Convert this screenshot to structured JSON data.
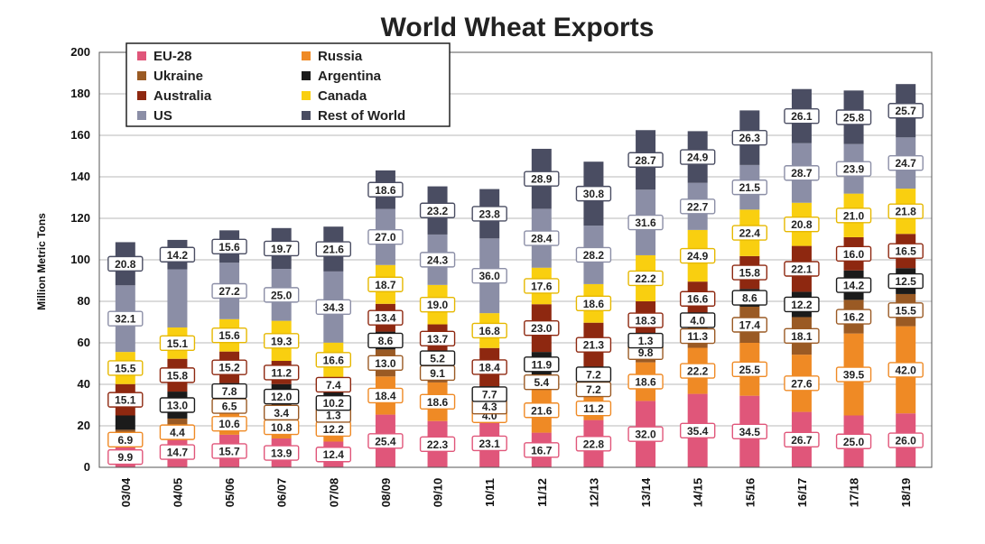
{
  "chart_data": {
    "type": "bar",
    "stacked": true,
    "title": "World Wheat Exports",
    "ylabel": "Million Metric Tons",
    "ylim": [
      0,
      200
    ],
    "yticks": [
      0,
      20,
      40,
      60,
      80,
      100,
      120,
      140,
      160,
      180,
      200
    ],
    "grid": true,
    "legend_position": "top-left",
    "categories": [
      "03/04",
      "04/05",
      "05/06",
      "06/07",
      "07/08",
      "08/09",
      "09/10",
      "10/11",
      "11/12",
      "12/13",
      "13/14",
      "14/15",
      "15/16",
      "16/17",
      "17/18",
      "18/19"
    ],
    "series": [
      {
        "name": "EU-28",
        "color": "#e0567a",
        "values": [
          9.9,
          14.7,
          15.7,
          13.9,
          12.4,
          25.4,
          22.3,
          23.1,
          16.7,
          22.8,
          32.0,
          35.4,
          34.5,
          26.7,
          25.0,
          26.0
        ]
      },
      {
        "name": "Russia",
        "color": "#ef8a25",
        "values": [
          6.9,
          4.4,
          10.6,
          10.8,
          12.2,
          18.4,
          18.6,
          4.0,
          21.6,
          11.2,
          18.6,
          22.2,
          25.5,
          27.6,
          39.5,
          42.0
        ]
      },
      {
        "name": "Ukraine",
        "color": "#9a5a24",
        "values": [
          1.3,
          4.4,
          6.5,
          3.4,
          1.3,
          13.0,
          9.1,
          4.3,
          5.4,
          7.2,
          9.8,
          11.3,
          17.4,
          18.1,
          16.2,
          15.5
        ]
      },
      {
        "name": "Argentina",
        "color": "#1b1b1b",
        "values": [
          6.9,
          13.0,
          7.8,
          12.0,
          10.2,
          8.6,
          5.2,
          7.7,
          11.9,
          7.2,
          1.3,
          4.0,
          8.6,
          12.2,
          14.2,
          12.5
        ]
      },
      {
        "name": "Australia",
        "color": "#8e2810",
        "values": [
          15.1,
          15.8,
          15.2,
          11.2,
          7.4,
          13.4,
          13.7,
          18.4,
          23.0,
          21.3,
          18.3,
          16.6,
          15.8,
          22.1,
          16.0,
          16.5
        ]
      },
      {
        "name": "Canada",
        "color": "#f9cf10",
        "values": [
          15.5,
          15.1,
          15.6,
          19.3,
          16.6,
          18.7,
          19.0,
          16.8,
          17.6,
          18.6,
          22.2,
          24.9,
          22.4,
          20.8,
          21.0,
          21.8
        ]
      },
      {
        "name": "US",
        "color": "#8b8ea6",
        "values": [
          32.1,
          28.0,
          27.2,
          25.0,
          34.3,
          27.0,
          24.3,
          36.0,
          28.4,
          28.2,
          31.6,
          22.7,
          21.5,
          28.7,
          23.9,
          24.7
        ]
      },
      {
        "name": "Rest of World",
        "color": "#4a4d62",
        "values": [
          20.8,
          14.2,
          15.6,
          19.7,
          21.6,
          18.6,
          23.2,
          23.8,
          28.9,
          30.8,
          28.7,
          24.9,
          26.3,
          26.1,
          25.8,
          25.7
        ]
      }
    ],
    "data_labels": [
      {
        "category": "03/04",
        "labels": [
          "9.9",
          "6.9",
          "",
          "",
          "15.1",
          "15.5",
          "32.1",
          "20.8"
        ]
      },
      {
        "category": "04/05",
        "labels": [
          "14.7",
          "4.4",
          "",
          "13.0",
          "15.8",
          "15.1",
          "",
          "14.2"
        ]
      },
      {
        "category": "05/06",
        "labels": [
          "15.7",
          "10.6",
          "6.5",
          "7.8",
          "15.2",
          "15.6",
          "27.2",
          "15.6"
        ]
      },
      {
        "category": "06/07",
        "labels": [
          "13.9",
          "10.8",
          "3.4",
          "12.0",
          "11.2",
          "19.3",
          "25.0",
          "19.7"
        ]
      },
      {
        "category": "07/08",
        "labels": [
          "12.4",
          "12.2",
          "1.3",
          "10.2",
          "7.4",
          "16.6",
          "34.3",
          "21.6"
        ]
      },
      {
        "category": "08/09",
        "labels": [
          "25.4",
          "18.4",
          "13.0",
          "8.6",
          "13.4",
          "18.7",
          "27.0",
          "18.6"
        ]
      },
      {
        "category": "09/10",
        "labels": [
          "22.3",
          "18.6",
          "9.1",
          "5.2",
          "13.7",
          "19.0",
          "24.3",
          "23.2"
        ]
      },
      {
        "category": "10/11",
        "labels": [
          "23.1",
          "4.0",
          "4.3",
          "7.7",
          "18.4",
          "16.8",
          "36.0",
          "23.8"
        ]
      },
      {
        "category": "11/12",
        "labels": [
          "16.7",
          "21.6",
          "5.4",
          "11.9",
          "23.0",
          "17.6",
          "28.4",
          "28.9"
        ]
      },
      {
        "category": "12/13",
        "labels": [
          "22.8",
          "11.2",
          "7.2",
          "7.2",
          "21.3",
          "18.6",
          "28.2",
          "30.8"
        ]
      },
      {
        "category": "13/14",
        "labels": [
          "32.0",
          "18.6",
          "9.8",
          "1.3",
          "18.3",
          "22.2",
          "31.6",
          "28.7"
        ]
      },
      {
        "category": "14/15",
        "labels": [
          "35.4",
          "22.2",
          "11.3",
          "4.0",
          "16.6",
          "24.9",
          "22.7",
          "24.9"
        ]
      },
      {
        "category": "15/16",
        "labels": [
          "34.5",
          "25.5",
          "17.4",
          "8.6",
          "15.8",
          "22.4",
          "21.5",
          "26.3"
        ]
      },
      {
        "category": "16/17",
        "labels": [
          "26.7",
          "27.6",
          "18.1",
          "12.2",
          "22.1",
          "20.8",
          "28.7",
          "26.1"
        ]
      },
      {
        "category": "17/18",
        "labels": [
          "25.0",
          "39.5",
          "16.2",
          "14.2",
          "16.0",
          "21.0",
          "23.9",
          "25.8"
        ]
      },
      {
        "category": "18/19",
        "labels": [
          "26.0",
          "42.0",
          "15.5",
          "12.5",
          "16.5",
          "21.8",
          "24.7",
          "25.7"
        ]
      }
    ]
  }
}
